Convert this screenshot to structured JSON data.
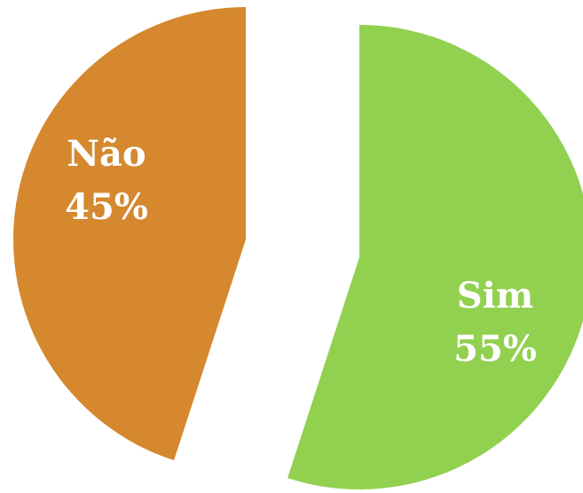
{
  "chart_data": {
    "type": "pie",
    "categories": [
      "Sim",
      "Não"
    ],
    "values": [
      55,
      45
    ],
    "value_labels": [
      "55%",
      "45%"
    ],
    "colors": [
      "#92d050",
      "#d5882e"
    ]
  }
}
